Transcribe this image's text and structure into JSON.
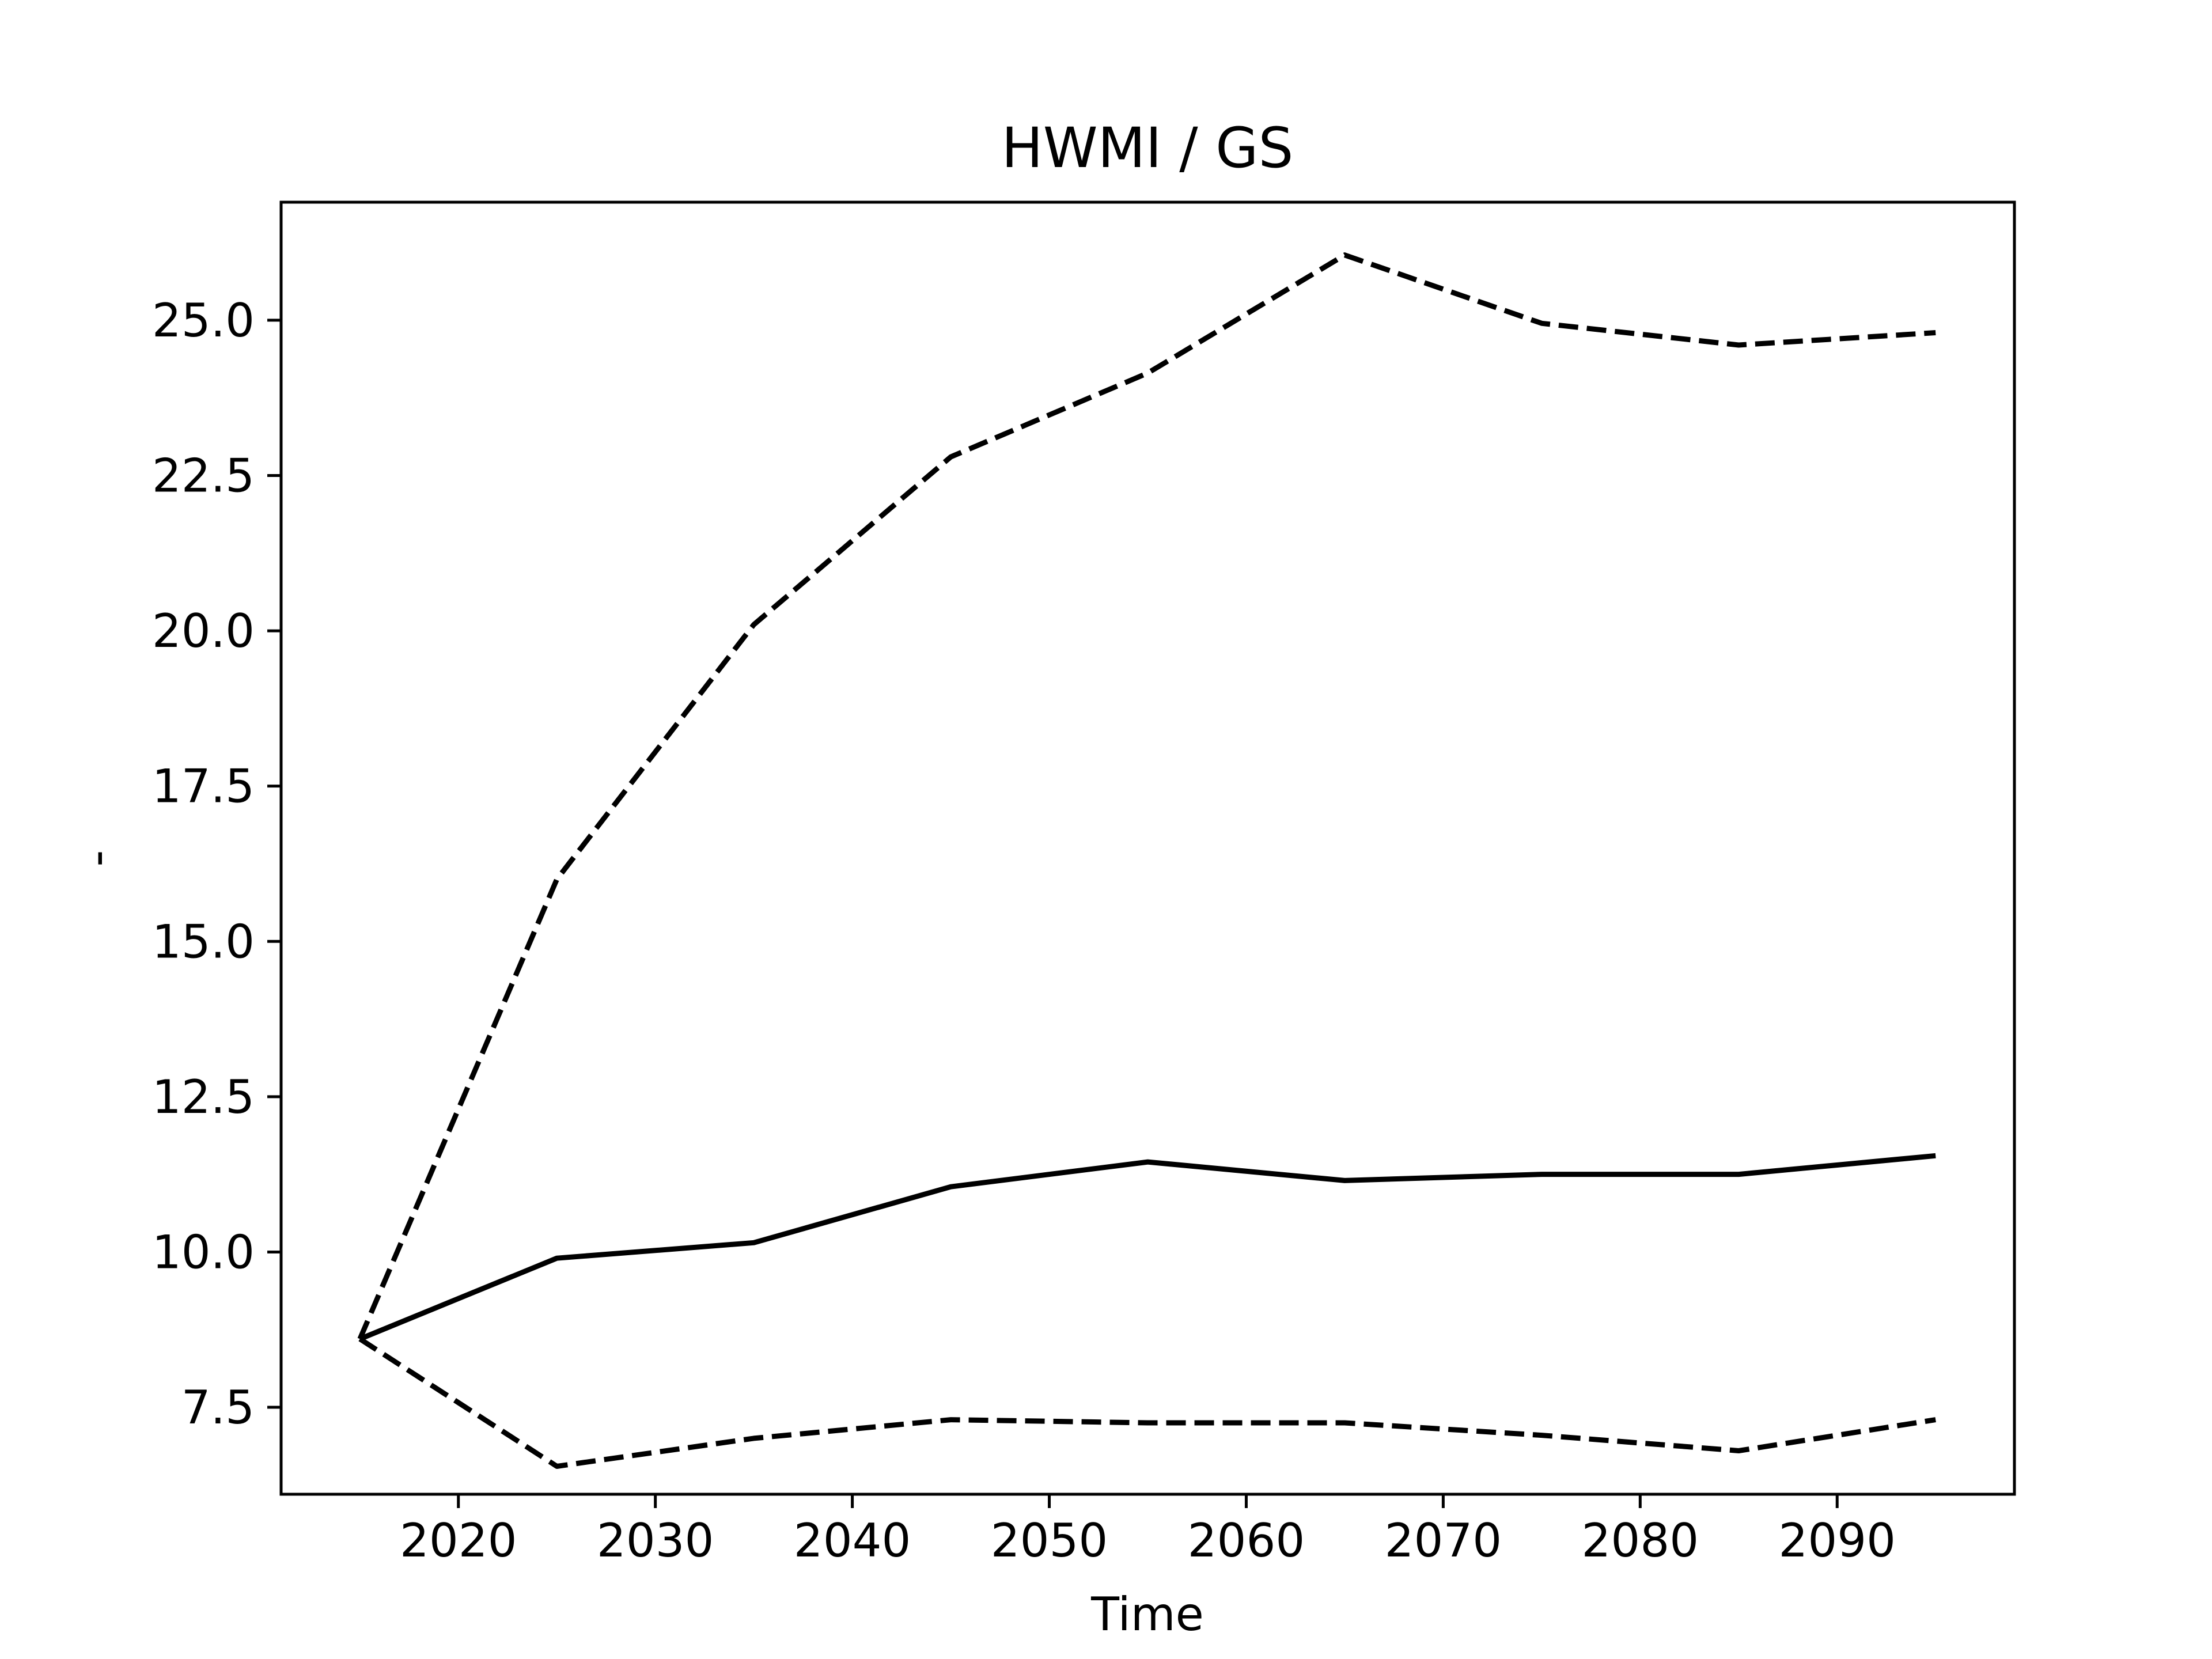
{
  "chart_data": {
    "type": "line",
    "title": "HWMI / GS",
    "xlabel": "Time",
    "ylabel": "-",
    "xlim": [
      2011,
      2099
    ],
    "ylim": [
      6.1,
      26.9
    ],
    "xticks": [
      2020,
      2030,
      2040,
      2050,
      2060,
      2070,
      2080,
      2090
    ],
    "yticks": [
      7.5,
      10.0,
      12.5,
      15.0,
      17.5,
      20.0,
      22.5,
      25.0
    ],
    "ytick_labels": [
      "7.5",
      "10.0",
      "12.5",
      "15.0",
      "17.5",
      "20.0",
      "22.5",
      "25.0"
    ],
    "grid": false,
    "legend": "none",
    "x": [
      2015,
      2025,
      2035,
      2045,
      2055,
      2065,
      2075,
      2085,
      2095
    ],
    "series": [
      {
        "style": "solid",
        "color": "#000000",
        "values": [
          8.6,
          9.9,
          10.15,
          11.05,
          11.45,
          11.15,
          11.25,
          11.25,
          11.55
        ]
      },
      {
        "style": "dashed",
        "color": "#000000",
        "values": [
          8.6,
          16.0,
          20.1,
          22.8,
          24.15,
          26.05,
          24.95,
          24.6,
          24.8
        ]
      },
      {
        "style": "dashed",
        "color": "#000000",
        "values": [
          8.6,
          6.55,
          7.0,
          7.3,
          7.25,
          7.25,
          7.05,
          6.8,
          7.3
        ]
      }
    ]
  }
}
